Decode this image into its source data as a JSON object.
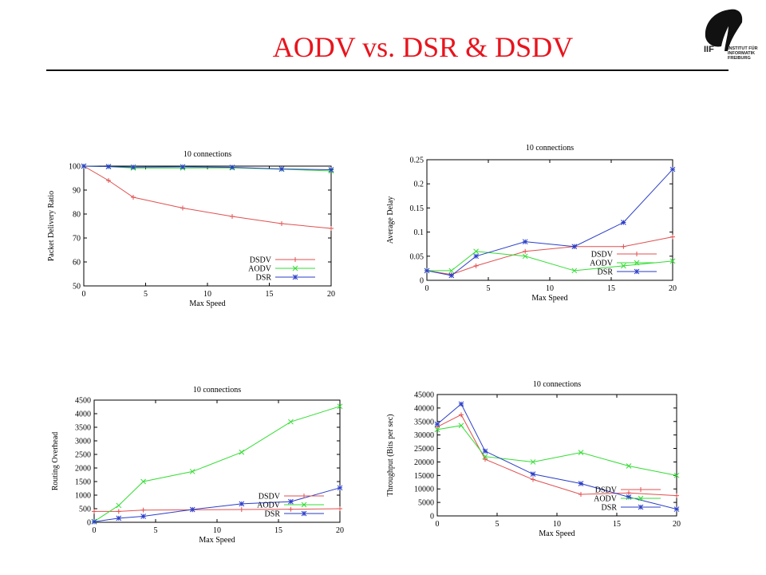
{
  "slide": {
    "title": "AODV vs. DSR & DSDV"
  },
  "logo": {
    "letters": "IIF",
    "line1": "INSTITUT FÜR",
    "line2": "INFORMATIK",
    "line3": "FREIBURG"
  },
  "colors": {
    "DSDV": "#e05050",
    "AODV": "#33dd33",
    "DSR": "#2a3ec8",
    "title": "#e8141d"
  },
  "chart_data": [
    {
      "type": "line",
      "title": "10 connections",
      "xlabel": "Max Speed",
      "ylabel": "Packet Delivery Ratio",
      "xlim": [
        0,
        20
      ],
      "ylim": [
        50,
        100
      ],
      "xticks": [
        0,
        5,
        10,
        15,
        20
      ],
      "yticks": [
        50,
        60,
        70,
        80,
        90,
        100
      ],
      "legend": "bottom-right",
      "series": [
        {
          "name": "DSDV",
          "x": [
            0,
            2,
            4,
            8,
            12,
            16,
            20
          ],
          "y": [
            100,
            94,
            87,
            82.5,
            79,
            76,
            74
          ]
        },
        {
          "name": "AODV",
          "x": [
            0,
            2,
            4,
            8,
            12,
            16,
            20
          ],
          "y": [
            100,
            99.8,
            99.2,
            99.2,
            99.3,
            98.7,
            98
          ]
        },
        {
          "name": "DSR",
          "x": [
            0,
            2,
            4,
            8,
            12,
            16,
            20
          ],
          "y": [
            100,
            99.8,
            99.6,
            99.7,
            99.5,
            98.8,
            98.5
          ]
        }
      ]
    },
    {
      "type": "line",
      "title": "10 connections",
      "xlabel": "Max Speed",
      "ylabel": "Average Delay",
      "xlim": [
        0,
        20
      ],
      "ylim": [
        0,
        0.25
      ],
      "xticks": [
        0,
        5,
        10,
        15,
        20
      ],
      "yticks": [
        0,
        0.05,
        0.1,
        0.15,
        0.2,
        0.25
      ],
      "legend": "bottom-right",
      "series": [
        {
          "name": "DSDV",
          "x": [
            0,
            2,
            4,
            8,
            12,
            16,
            20
          ],
          "y": [
            0.02,
            0.012,
            0.03,
            0.06,
            0.07,
            0.07,
            0.09
          ]
        },
        {
          "name": "AODV",
          "x": [
            0,
            2,
            4,
            8,
            12,
            16,
            20
          ],
          "y": [
            0.02,
            0.02,
            0.06,
            0.05,
            0.02,
            0.03,
            0.04
          ]
        },
        {
          "name": "DSR",
          "x": [
            0,
            2,
            4,
            8,
            12,
            16,
            20
          ],
          "y": [
            0.02,
            0.01,
            0.05,
            0.08,
            0.07,
            0.12,
            0.23
          ]
        }
      ]
    },
    {
      "type": "line",
      "title": "10 connections",
      "xlabel": "Max Speed",
      "ylabel": "Routing Overhead",
      "xlim": [
        0,
        20
      ],
      "ylim": [
        0,
        4500
      ],
      "xticks": [
        0,
        5,
        10,
        15,
        20
      ],
      "yticks": [
        0,
        500,
        1000,
        1500,
        2000,
        2500,
        3000,
        3500,
        4000,
        4500
      ],
      "legend": "bottom-right",
      "series": [
        {
          "name": "DSDV",
          "x": [
            0,
            2,
            4,
            8,
            12,
            16,
            20
          ],
          "y": [
            400,
            400,
            450,
            460,
            470,
            480,
            500
          ]
        },
        {
          "name": "AODV",
          "x": [
            0,
            2,
            4,
            8,
            12,
            16,
            20
          ],
          "y": [
            30,
            620,
            1500,
            1870,
            2580,
            3700,
            4270
          ]
        },
        {
          "name": "DSR",
          "x": [
            0,
            2,
            4,
            8,
            12,
            16,
            20
          ],
          "y": [
            20,
            150,
            220,
            470,
            680,
            760,
            1270
          ]
        }
      ]
    },
    {
      "type": "line",
      "title": "10 connections",
      "xlabel": "Max Speed",
      "ylabel": "Throughput (Bits per sec)",
      "xlim": [
        0,
        20
      ],
      "ylim": [
        0,
        45000
      ],
      "xticks": [
        0,
        5,
        10,
        15,
        20
      ],
      "yticks": [
        0,
        5000,
        10000,
        15000,
        20000,
        25000,
        30000,
        35000,
        40000,
        45000
      ],
      "legend": "bottom-right",
      "series": [
        {
          "name": "DSDV",
          "x": [
            0,
            2,
            4,
            8,
            12,
            16,
            20
          ],
          "y": [
            33000,
            37500,
            21000,
            13500,
            8000,
            8500,
            7500
          ]
        },
        {
          "name": "AODV",
          "x": [
            0,
            2,
            4,
            8,
            12,
            16,
            20
          ],
          "y": [
            32000,
            33500,
            22000,
            20000,
            23500,
            18500,
            15000
          ]
        },
        {
          "name": "DSR",
          "x": [
            0,
            2,
            4,
            8,
            12,
            16,
            20
          ],
          "y": [
            34000,
            41500,
            24000,
            15500,
            12000,
            7000,
            2500
          ]
        }
      ]
    }
  ]
}
